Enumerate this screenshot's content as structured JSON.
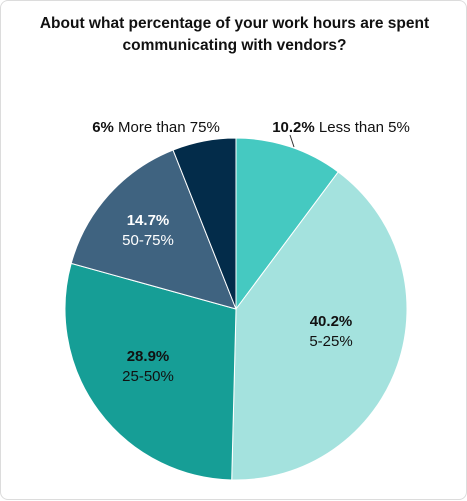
{
  "chart_data": {
    "type": "pie",
    "title": "About what percentage of your work hours are spent communicating with vendors?",
    "slices": [
      {
        "name": "Less than 5%",
        "value": 10.2,
        "value_label": "10.2%",
        "color": "#45c9c1"
      },
      {
        "name": "5-25%",
        "value": 40.2,
        "value_label": "40.2%",
        "color": "#a4e2de"
      },
      {
        "name": "25-50%",
        "value": 28.9,
        "value_label": "28.9%",
        "color": "#169e96"
      },
      {
        "name": "50-75%",
        "value": 14.7,
        "value_label": "14.7%",
        "color": "#3f6380"
      },
      {
        "name": "More than 75%",
        "value": 6.0,
        "value_label": "6%",
        "color": "#032c4a"
      }
    ],
    "start_angle": "12 o'clock",
    "direction": "clockwise",
    "legend": "none"
  }
}
